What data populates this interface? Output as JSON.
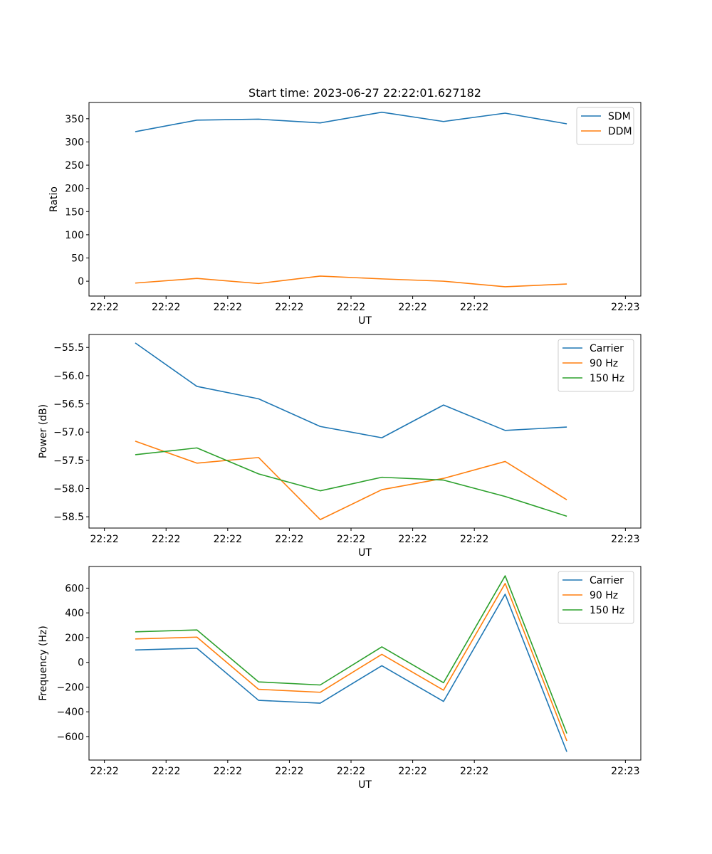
{
  "figure": {
    "title": "Start time: 2023-06-27 22:22:01.627182"
  },
  "chart_data": [
    {
      "type": "line",
      "title": "Start time: 2023-06-27 22:22:01.627182",
      "xlabel": "UT",
      "ylabel": "Ratio",
      "x": [
        0,
        1,
        2,
        3,
        4,
        5,
        6,
        7
      ],
      "x_tick_labels": [
        "22:22",
        "22:22",
        "22:22",
        "22:22",
        "22:22",
        "22:22",
        "22:22"
      ],
      "x_tick_edge_label": "22:23",
      "xlim": [
        -0.75,
        8.2
      ],
      "ylim": [
        -32,
        385
      ],
      "y_ticks": [
        0,
        50,
        100,
        150,
        200,
        250,
        300,
        350
      ],
      "y_tick_labels": [
        "0",
        "50",
        "100",
        "150",
        "200",
        "250",
        "300",
        "350"
      ],
      "grid": false,
      "legend": "top-right",
      "series": [
        {
          "name": "SDM",
          "color": "#1f77b4",
          "values": [
            322,
            347,
            349,
            341,
            364,
            344,
            362,
            339
          ]
        },
        {
          "name": "DDM",
          "color": "#ff7f0e",
          "values": [
            -4,
            6,
            -5,
            11,
            5,
            0,
            -12,
            -6
          ]
        }
      ]
    },
    {
      "type": "line",
      "title": "",
      "xlabel": "UT",
      "ylabel": "Power (dB)",
      "x": [
        0,
        1,
        2,
        3,
        4,
        5,
        6,
        7
      ],
      "x_tick_labels": [
        "22:22",
        "22:22",
        "22:22",
        "22:22",
        "22:22",
        "22:22",
        "22:22"
      ],
      "x_tick_edge_label": "22:23",
      "xlim": [
        -0.75,
        8.2
      ],
      "ylim": [
        -58.7,
        -55.27
      ],
      "y_ticks": [
        -58.5,
        -58.0,
        -57.5,
        -57.0,
        -56.5,
        -56.0,
        -55.5
      ],
      "y_tick_labels": [
        "−58.5",
        "−58.0",
        "−57.5",
        "−57.0",
        "−56.5",
        "−56.0",
        "−55.5"
      ],
      "grid": false,
      "legend": "top-right",
      "series": [
        {
          "name": "Carrier",
          "color": "#1f77b4",
          "values": [
            -55.42,
            -56.19,
            -56.41,
            -56.9,
            -57.1,
            -56.52,
            -56.97,
            -56.91
          ]
        },
        {
          "name": "90 Hz",
          "color": "#ff7f0e",
          "values": [
            -57.16,
            -57.55,
            -57.45,
            -58.55,
            -58.02,
            -57.82,
            -57.52,
            -58.2
          ]
        },
        {
          "name": "150 Hz",
          "color": "#2ca02c",
          "values": [
            -57.4,
            -57.28,
            -57.74,
            -58.04,
            -57.8,
            -57.85,
            -58.14,
            -58.49
          ]
        }
      ]
    },
    {
      "type": "line",
      "title": "",
      "xlabel": "UT",
      "ylabel": "Frequency (Hz)",
      "x": [
        0,
        1,
        2,
        3,
        4,
        5,
        6,
        7
      ],
      "x_tick_labels": [
        "22:22",
        "22:22",
        "22:22",
        "22:22",
        "22:22",
        "22:22",
        "22:22"
      ],
      "x_tick_edge_label": "22:23",
      "xlim": [
        -0.75,
        8.2
      ],
      "ylim": [
        -790,
        775
      ],
      "y_ticks": [
        -600,
        -400,
        -200,
        0,
        200,
        400,
        600
      ],
      "y_tick_labels": [
        "−600",
        "−400",
        "−200",
        "0",
        "200",
        "400",
        "600"
      ],
      "grid": false,
      "legend": "top-right",
      "series": [
        {
          "name": "Carrier",
          "color": "#1f77b4",
          "values": [
            100,
            114,
            -307,
            -330,
            -27,
            -316,
            551,
            -723
          ]
        },
        {
          "name": "90 Hz",
          "color": "#ff7f0e",
          "values": [
            189,
            204,
            -218,
            -242,
            65,
            -225,
            638,
            -635
          ]
        },
        {
          "name": "150 Hz",
          "color": "#2ca02c",
          "values": [
            247,
            262,
            -158,
            -183,
            125,
            -165,
            700,
            -575
          ]
        }
      ]
    }
  ]
}
